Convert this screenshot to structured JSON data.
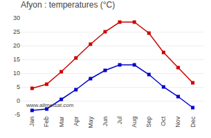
{
  "chart_data": {
    "type": "line",
    "title": "Afyon : temperatures (°C)",
    "categories": [
      "Jan",
      "Feb",
      "Mar",
      "Apr",
      "May",
      "Jun",
      "Jul",
      "Aug",
      "Sep",
      "Oct",
      "Nov",
      "Dec"
    ],
    "series": [
      {
        "color": "#cc0000",
        "marker": "square",
        "values": [
          4.5,
          6.0,
          10.5,
          15.5,
          20.5,
          25.0,
          28.5,
          28.5,
          24.5,
          17.5,
          12.0,
          6.5
        ]
      },
      {
        "color": "#0000cc",
        "marker": "square",
        "values": [
          -3.5,
          -3.0,
          0.5,
          4.0,
          8.0,
          11.0,
          13.0,
          13.0,
          9.5,
          5.0,
          1.5,
          -2.5
        ]
      }
    ],
    "ylim": [
      -5,
      30
    ],
    "yticks": [
      -5,
      0,
      5,
      10,
      15,
      20,
      25,
      30
    ],
    "grid": true,
    "annotations": [
      "www.allmetsat.com"
    ]
  }
}
